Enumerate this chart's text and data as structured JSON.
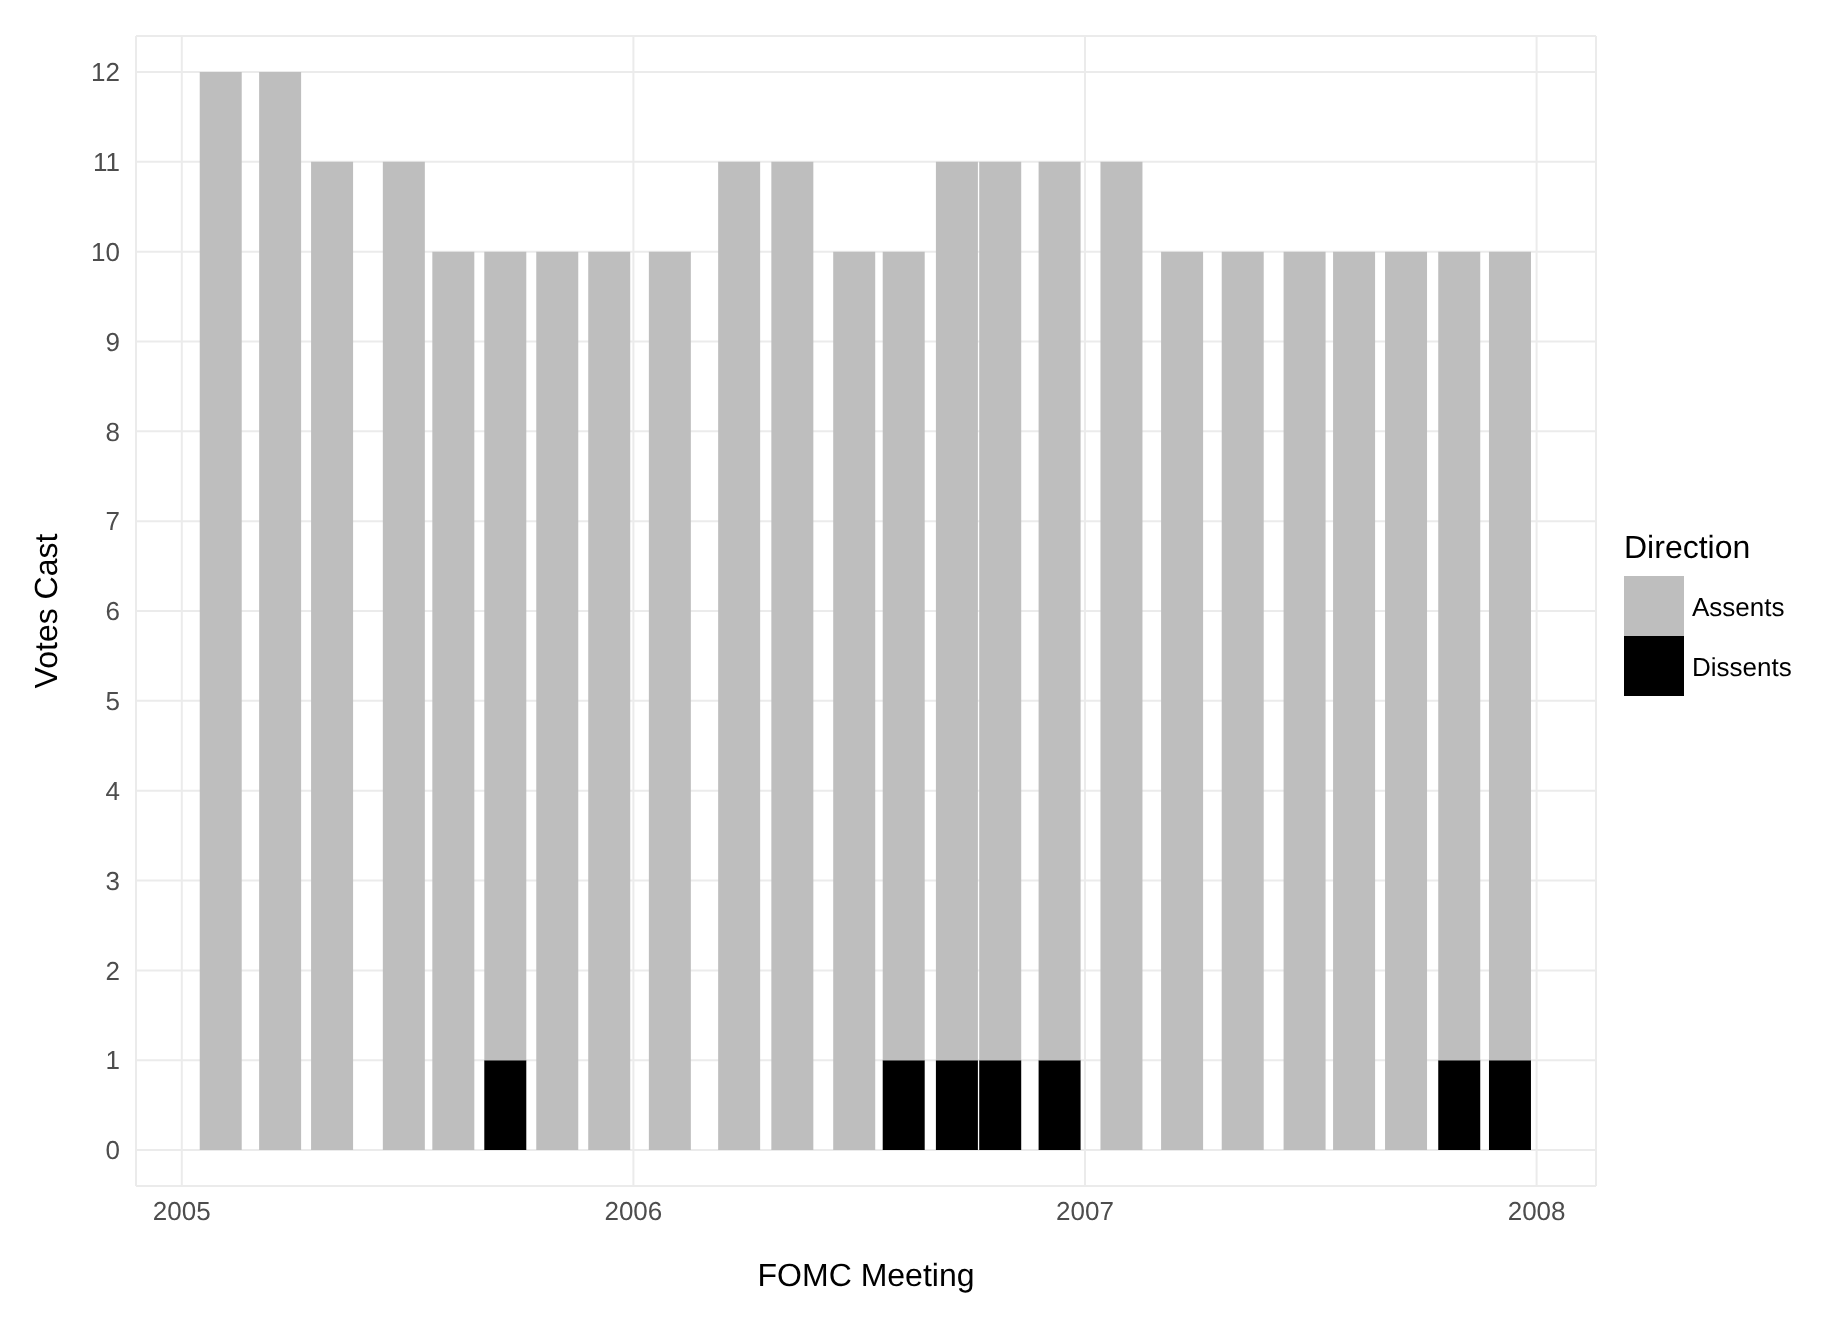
{
  "chart_data": {
    "type": "bar",
    "stacked": true,
    "xlabel": "FOMC Meeting",
    "ylabel": "Votes Cast",
    "legend_title": "Direction",
    "x": [
      "2005-02-02",
      "2005-03-22",
      "2005-05-03",
      "2005-06-30",
      "2005-08-09",
      "2005-09-20",
      "2005-11-01",
      "2005-12-13",
      "2006-01-31",
      "2006-03-28",
      "2006-05-10",
      "2006-06-29",
      "2006-08-08",
      "2006-09-20",
      "2006-10-25",
      "2006-12-12",
      "2007-01-31",
      "2007-03-21",
      "2007-05-09",
      "2007-06-28",
      "2007-08-07",
      "2007-09-18",
      "2007-10-31",
      "2007-12-11"
    ],
    "series": [
      {
        "name": "Dissents",
        "color": "#000000",
        "values": [
          0,
          0,
          0,
          0,
          0,
          1,
          0,
          0,
          0,
          0,
          0,
          0,
          1,
          1,
          1,
          1,
          0,
          0,
          0,
          0,
          0,
          0,
          1,
          1
        ]
      },
      {
        "name": "Assents",
        "color": "#bebebe",
        "values": [
          12,
          12,
          11,
          11,
          10,
          9,
          10,
          10,
          10,
          11,
          11,
          10,
          9,
          10,
          10,
          10,
          11,
          10,
          10,
          10,
          10,
          10,
          9,
          9
        ]
      }
    ],
    "xlim": [
      "2004-11-25",
      "2008-02-18"
    ],
    "xticks": [
      "2005",
      "2006",
      "2007",
      "2008"
    ],
    "ylim": [
      -0.4,
      12.4
    ],
    "yticks": [
      0,
      1,
      2,
      3,
      4,
      5,
      6,
      7,
      8,
      9,
      10,
      11,
      12
    ],
    "grid": true,
    "legend": "right"
  }
}
